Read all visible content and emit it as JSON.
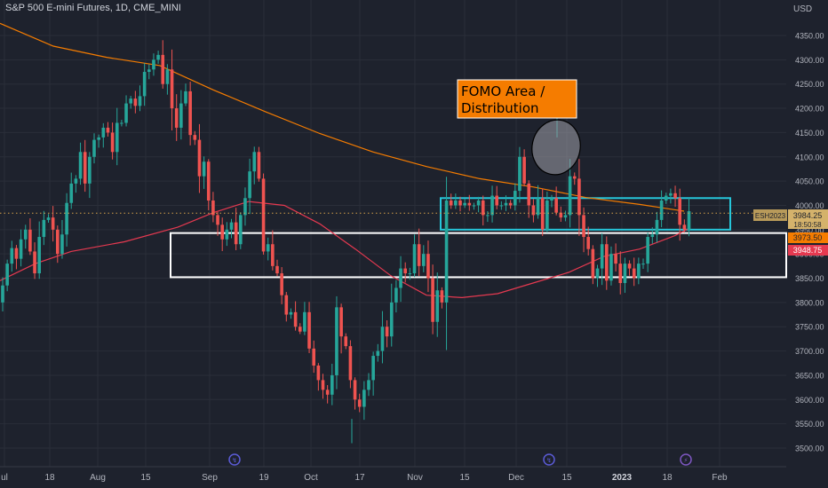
{
  "header": {
    "title": "S&P 500 E-mini Futures, 1D, CME_MINI",
    "currency": "USD"
  },
  "chart_data": {
    "type": "candlestick",
    "title": "S&P 500 E-mini Futures, 1D, CME_MINI",
    "ylim": [
      3470,
      4385
    ],
    "y_ticks": [
      4350,
      4300,
      4250,
      4200,
      4150,
      4100,
      4050,
      4000,
      3950,
      3900,
      3850,
      3800,
      3750,
      3700,
      3650,
      3600,
      3550,
      3500
    ],
    "y_tick_labels": [
      "4350.00",
      "4300.00",
      "4250.00",
      "4200.00",
      "4150.00",
      "4100.00",
      "4050.00",
      "4000.00",
      "3950.00",
      "3900.00",
      "3850.00",
      "3800.00",
      "3750.00",
      "3700.00",
      "3650.00",
      "3600.00",
      "3550.00",
      "3500.00"
    ],
    "x_ticks": [
      "ul",
      "18",
      "Aug",
      "15",
      "Sep",
      "19",
      "Oct",
      "17",
      "Nov",
      "15",
      "Dec",
      "15",
      "2023",
      "18",
      "Feb"
    ],
    "grid": true,
    "colors": {
      "up": "#26a69a",
      "down": "#ef5350",
      "ma_long": "#f57c00",
      "ma_short": "#e53950",
      "fomo_box": "#26c6da",
      "support_box": "#ffffff",
      "label_bg": "#f57c00"
    },
    "series": [
      {
        "name": "closes",
        "values": [
          3835,
          3880,
          3912,
          3890,
          3930,
          3950,
          3905,
          3860,
          3935,
          3970,
          3975,
          3950,
          3900,
          3940,
          4005,
          4045,
          4055,
          4110,
          4045,
          4100,
          4135,
          4140,
          4160,
          4150,
          4110,
          4170,
          4170,
          4210,
          4220,
          4205,
          4225,
          4275,
          4280,
          4300,
          4310,
          4250,
          4280,
          4200,
          4160,
          4210,
          4235,
          4145,
          4135,
          4060,
          4090,
          4010,
          3980,
          3960,
          3930,
          3950,
          3965,
          3920,
          3980,
          4015,
          4070,
          4110,
          4055,
          3905,
          3920,
          3875,
          3860,
          3815,
          3775,
          3780,
          3750,
          3740,
          3780,
          3705,
          3670,
          3640,
          3620,
          3610,
          3650,
          3790,
          3730,
          3710,
          3640,
          3600,
          3585,
          3620,
          3640,
          3690,
          3700,
          3750,
          3730,
          3800,
          3830,
          3870,
          3860,
          3860,
          3920,
          3875,
          3900,
          3850,
          3760,
          3825,
          3800,
          4010,
          4000,
          4010,
          4000,
          4005,
          4000,
          4000,
          4010,
          3980,
          3980,
          4020,
          4000,
          4000,
          4005,
          4000,
          4030,
          4100,
          4045,
          4000,
          3980,
          4015,
          3950,
          4010,
          4015,
          3985,
          3975,
          3980,
          4060,
          4055,
          3980,
          3935,
          3910,
          3850,
          3870,
          3920,
          3845,
          3900,
          3880,
          3840,
          3880,
          3870,
          3850,
          3880,
          3880,
          3935,
          3940,
          3970,
          4010,
          4020,
          4025,
          4015,
          3960,
          3950,
          3988
        ]
      },
      {
        "name": "ma_long",
        "values": [
          [
            0,
            4375
          ],
          [
            60,
            4328
          ],
          [
            120,
            4305
          ],
          [
            180,
            4288
          ],
          [
            240,
            4238
          ],
          [
            300,
            4192
          ],
          [
            360,
            4148
          ],
          [
            420,
            4110
          ],
          [
            480,
            4080
          ],
          [
            540,
            4055
          ],
          [
            600,
            4038
          ],
          [
            660,
            4016
          ],
          [
            720,
            4002
          ],
          [
            770,
            3988
          ]
        ]
      },
      {
        "name": "ma_short",
        "values": [
          [
            0,
            3845
          ],
          [
            40,
            3880
          ],
          [
            80,
            3905
          ],
          [
            140,
            3925
          ],
          [
            200,
            3955
          ],
          [
            240,
            3985
          ],
          [
            280,
            4008
          ],
          [
            320,
            4000
          ],
          [
            360,
            3962
          ],
          [
            400,
            3910
          ],
          [
            440,
            3855
          ],
          [
            480,
            3815
          ],
          [
            520,
            3810
          ],
          [
            560,
            3818
          ],
          [
            600,
            3840
          ],
          [
            640,
            3862
          ],
          [
            680,
            3895
          ],
          [
            720,
            3910
          ],
          [
            760,
            3938
          ],
          [
            775,
            3952
          ]
        ]
      }
    ],
    "annotations": {
      "fomo_label": [
        "FOMO Area /",
        "Distribution"
      ],
      "fomo_box": {
        "y_top": 4015,
        "y_bottom": 3950
      },
      "support_box": {
        "y_top": 3943,
        "y_bottom": 3852
      },
      "current_price_line": 3984
    },
    "price_labels": {
      "symbol": "ESH2023",
      "last": "3984.25",
      "countdown": "18:50:58",
      "level_a": "3973.50",
      "level_b": "3948.75"
    },
    "event_icons": [
      "earnings-icon",
      "earnings-icon",
      "lightning-icon"
    ]
  }
}
